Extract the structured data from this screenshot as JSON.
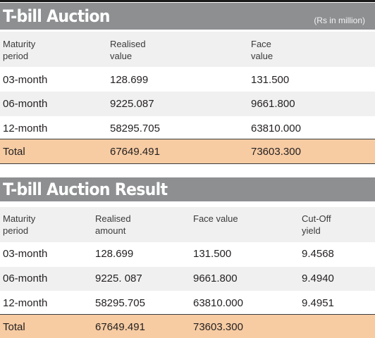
{
  "table1": {
    "title": "T-bill Auction",
    "unit_note": "(Rs in million)",
    "headers": [
      [
        "Maturity",
        "period"
      ],
      [
        "Realised",
        "value"
      ],
      [
        "Face",
        "value"
      ]
    ],
    "rows": [
      [
        "03-month",
        "128.699",
        "131.500"
      ],
      [
        "06-month",
        "9225.087",
        "9661.800"
      ],
      [
        "12-month",
        "58295.705",
        "63810.000"
      ]
    ],
    "total": [
      "Total",
      "67649.491",
      "73603.300"
    ]
  },
  "table2": {
    "title": "T-bill Auction Result",
    "headers": [
      [
        "Maturity",
        "period"
      ],
      [
        "Realised",
        "amount"
      ],
      [
        "Face value",
        ""
      ],
      [
        "Cut-Off",
        "yield"
      ]
    ],
    "rows": [
      [
        "03-month",
        "128.699",
        "131.500",
        "9.4568"
      ],
      [
        "06-month",
        "9225. 087",
        "9661.800",
        "9.4940"
      ],
      [
        "12-month",
        "58295.705",
        "63810.000",
        "9.4951"
      ]
    ],
    "total": [
      "Total",
      "67649.491",
      "73603.300",
      ""
    ]
  }
}
